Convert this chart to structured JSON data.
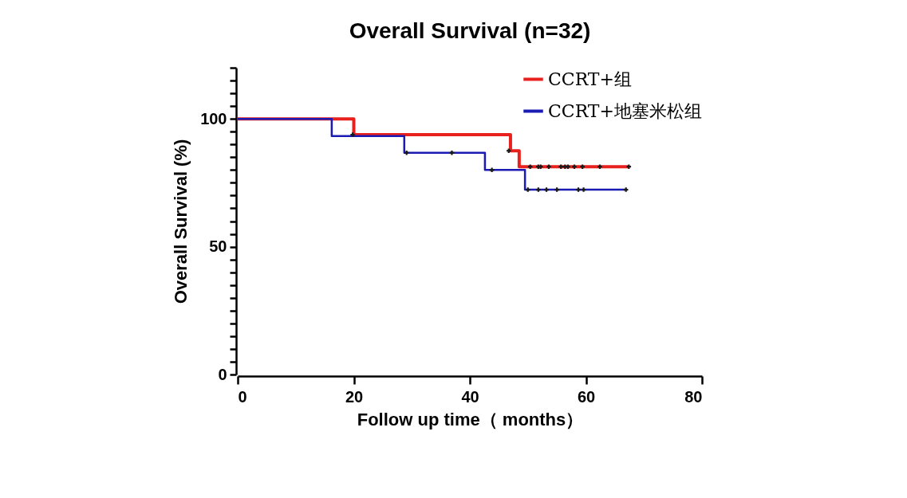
{
  "chart_data": {
    "type": "step",
    "title": "Overall Survival (n=32)",
    "xlabel": "Follow up time（ months）",
    "ylabel": "Overall Survival (%)",
    "xlim": [
      0,
      80
    ],
    "xticks": [
      0,
      20,
      40,
      60,
      80
    ],
    "ylim": [
      0,
      120
    ],
    "yticks": [
      0,
      {
        "value": 5,
        "label": null
      },
      {
        "value": 10,
        "label": null
      },
      {
        "value": 15,
        "label": null
      },
      {
        "value": 20,
        "label": null
      },
      {
        "value": 25,
        "label": null
      },
      {
        "value": 30,
        "label": null
      },
      {
        "value": 35,
        "label": null
      },
      {
        "value": 40,
        "label": null
      },
      {
        "value": 45,
        "label": null
      },
      50,
      {
        "value": 55,
        "label": null
      },
      {
        "value": 60,
        "label": null
      },
      {
        "value": 65,
        "label": null
      },
      {
        "value": 70,
        "label": null
      },
      {
        "value": 75,
        "label": null
      },
      {
        "value": 80,
        "label": null
      },
      {
        "value": 85,
        "label": null
      },
      {
        "value": 90,
        "label": null
      },
      {
        "value": 95,
        "label": null
      },
      100,
      {
        "value": 105,
        "label": null
      },
      {
        "value": 110,
        "label": null
      },
      {
        "value": 115,
        "label": null
      },
      {
        "value": 120,
        "label": null
      }
    ],
    "grid": false,
    "legend": "top right",
    "series": [
      {
        "name": "CCRT+组",
        "color": "#e8201e",
        "x": [
          0,
          20,
          47,
          48.5,
          67.4
        ],
        "values": [
          100,
          93.8,
          87.5,
          81.3,
          81.3
        ]
      },
      {
        "name": "CCRT+地塞米松组",
        "color": "#1a1ab4",
        "x": [
          0,
          16.2,
          28.7,
          42.6,
          49.5,
          66.8
        ],
        "values": [
          100,
          93.3,
          86.7,
          80,
          72.3,
          72.3
        ]
      },
      {
        "type": "scatter",
        "marker": "cross",
        "color": "#1a1a1a",
        "x": [
          19.8,
          46.7,
          50.4,
          51.8,
          52.2,
          53.6,
          55.7,
          56.4,
          56.9,
          58.0,
          59.4,
          62.4,
          67.4
        ],
        "values": [
          93.8,
          87.5,
          81.3,
          81.3,
          81.3,
          81.3,
          81.3,
          81.3,
          81.3,
          81.3,
          81.3,
          81.3,
          81.3
        ]
      },
      {
        "type": "scatter",
        "marker": "cross",
        "color": "#1a1a1a",
        "x": [
          29.1,
          36.9,
          43.8,
          50.0,
          51.8,
          53.2,
          55.0,
          58.7,
          59.6,
          66.9
        ],
        "values": [
          86.7,
          86.7,
          80,
          72.3,
          72.3,
          72.3,
          72.3,
          72.3,
          72.3,
          72.3
        ]
      }
    ]
  }
}
